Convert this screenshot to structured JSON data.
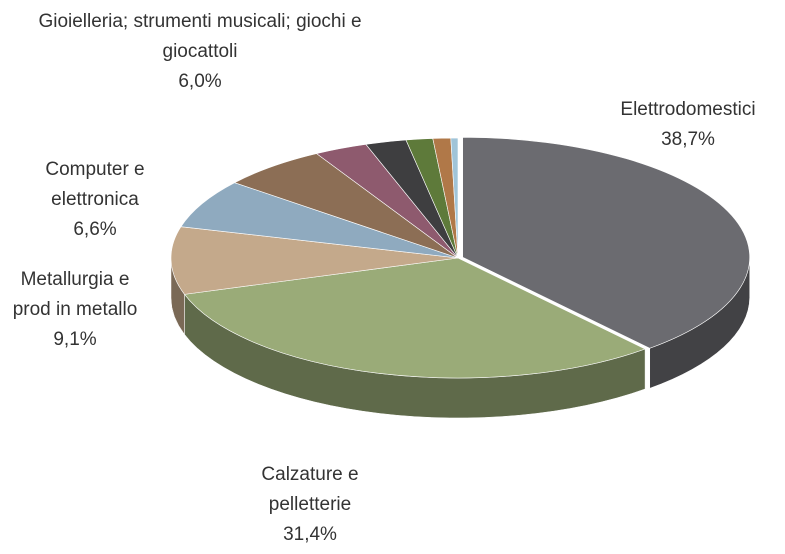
{
  "chart_data": {
    "type": "pie3d",
    "categories": [
      "Elettrodomestici",
      "Calzature e pelletterie",
      "Metallurgia e prod in metallo",
      "Computer e elettronica",
      "Gioielleria; strumenti musicali; giochi e giocattoli",
      null,
      null,
      null,
      null,
      null
    ],
    "values": [
      38.7,
      31.4,
      9.1,
      6.6,
      6.0,
      3.0,
      2.3,
      1.5,
      1.0,
      0.4
    ],
    "value_labels": [
      "38,7%",
      "31,4%",
      "9,1%",
      "6,6%",
      "6,0%",
      null,
      null,
      null,
      null,
      null
    ],
    "colors": [
      "#6b6b70",
      "#9aab78",
      "#c4a98b",
      "#8faabf",
      "#8c6e55",
      "#8e5a6e",
      "#3e3e40",
      "#5e7a3a",
      "#b07848",
      "#a0c4d8"
    ]
  }
}
